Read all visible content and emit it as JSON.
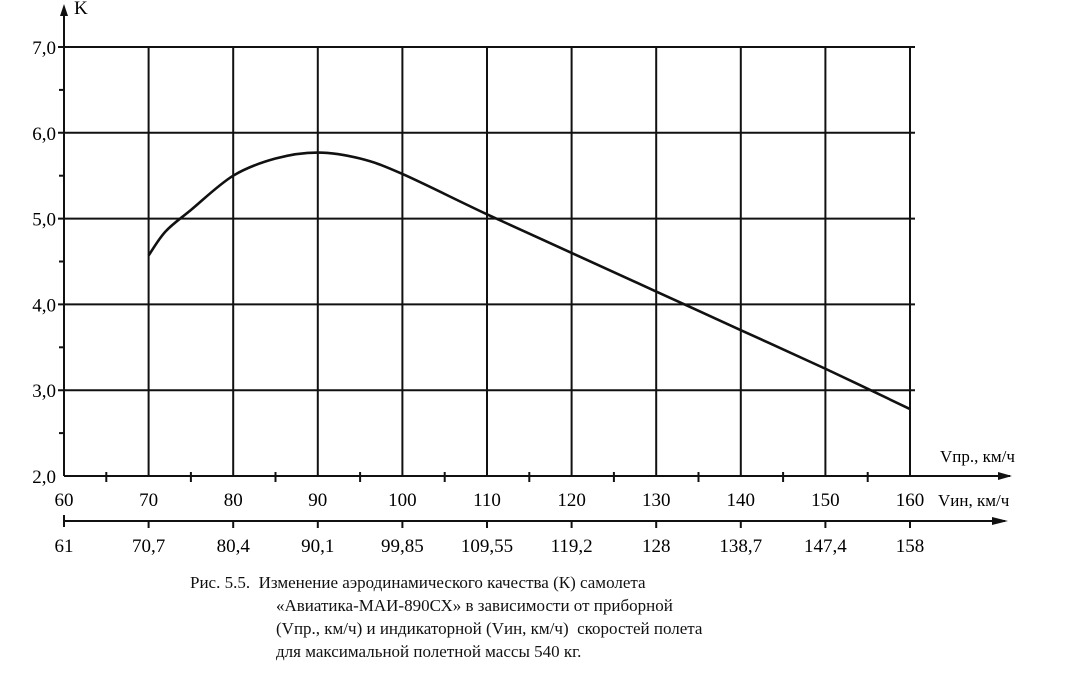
{
  "chart_data": {
    "type": "line",
    "ylabel": "K",
    "xlabel": "Vпр., км/ч",
    "xlabel2": "Vин, км/ч",
    "ylim": [
      2.0,
      7.0
    ],
    "xlim": [
      60,
      160
    ],
    "grid": true,
    "y_ticks": [
      "2,0",
      "3,0",
      "4,0",
      "5,0",
      "6,0",
      "7,0"
    ],
    "y_tick_values": [
      2,
      3,
      4,
      5,
      6,
      7
    ],
    "x_ticks": [
      "60",
      "70",
      "80",
      "90",
      "100",
      "110",
      "120",
      "130",
      "140",
      "150",
      "160"
    ],
    "x_tick_values": [
      60,
      70,
      80,
      90,
      100,
      110,
      120,
      130,
      140,
      150,
      160
    ],
    "x2_ticks": [
      "61",
      "70,7",
      "80,4",
      "90,1",
      "99,85",
      "109,55",
      "119,2",
      "128",
      "138,7",
      "147,4",
      "158"
    ],
    "series": [
      {
        "x": [
          70,
          72,
          75,
          80,
          85,
          90,
          95,
          100,
          110,
          120,
          130,
          140,
          150,
          160
        ],
        "y": [
          4.57,
          4.85,
          5.1,
          5.5,
          5.7,
          5.77,
          5.7,
          5.52,
          5.05,
          4.6,
          4.15,
          3.7,
          3.25,
          2.78
        ]
      }
    ]
  },
  "caption": {
    "line1": "Рис. 5.5.  Изменение аэродинамического качества (К) самолета",
    "line2": "«Авиатика-МАИ-890СХ» в зависимости от приборной",
    "line3": "(Vпр., км/ч) и индикаторной (Vин, км/ч)  скоростей полета",
    "line4": "для максимальной полетной массы 540 кг."
  }
}
